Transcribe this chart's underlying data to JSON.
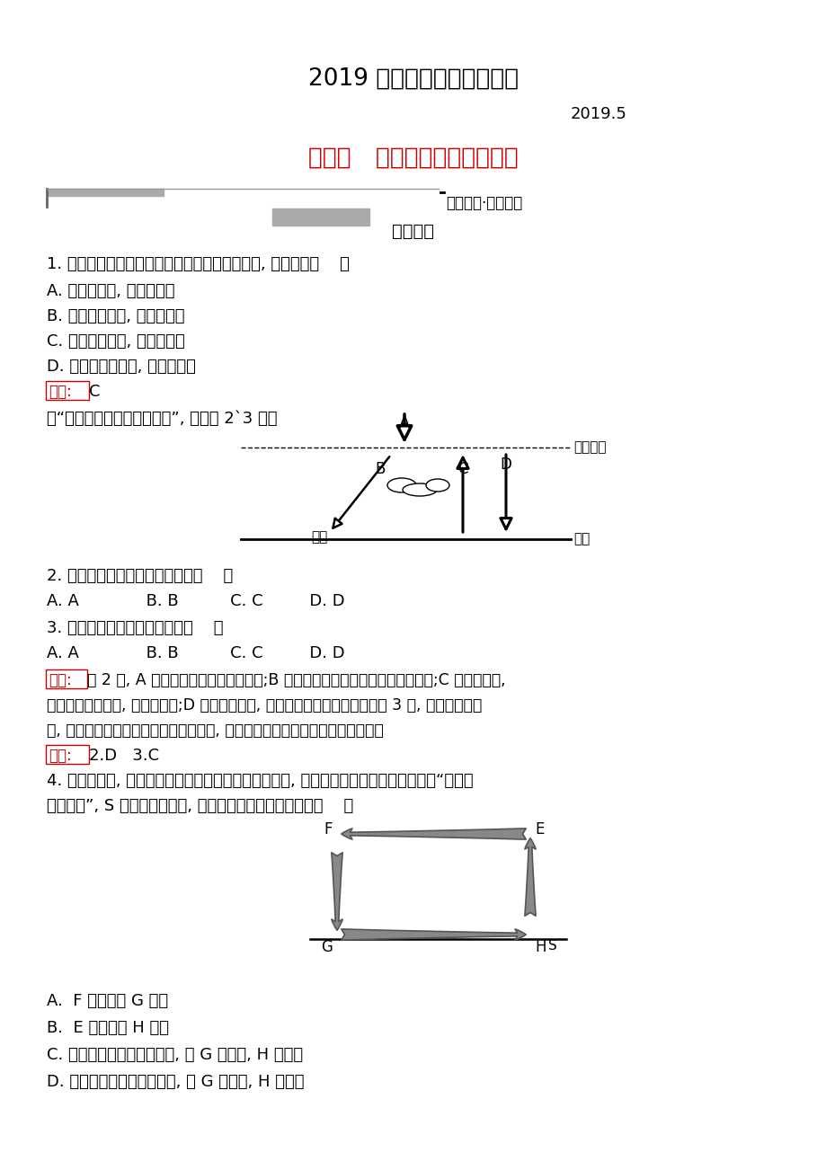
{
  "title": "2019 学年地理教学精品资料",
  "subtitle": "2019.5",
  "section_title": "第一节   冷热不均引起大气运动",
  "section_bar_label": "课时过关·能力提升",
  "section_sub_label": "基础巩固",
  "q1": "1. 霜冻往往出现于深秋至第二年早春晴朗的夜晚, 因为此时（    ）",
  "q1a": "A. 地面辐射强, 地表降温慢",
  "q1b": "B. 空气中水汽多, 地表降温快",
  "q1c": "C. 大气逆辐射弱, 地表降温快",
  "q1d": "D. 大气保温作用强, 地表降温慢",
  "q1_ans": "答案:",
  "q1_ans_val": "C",
  "q2_intro": "读“地球表面受热过程示意图”, 完成第 2`3 题。",
  "q2": "2. 图中字母表示大气逆辐射的是（    ）",
  "q2_opts": "A. A             B. B          C. C         D. D",
  "q3": "3. 近地面大气的热量主要来自（    ）",
  "q3_opts": "A. A             B. B          C. C         D. D",
  "analysis_label": "解析:",
  "analysis_text": "第 2 题, A 是到达大气上界的太阳辐射;B 是被大气削弱后到达地面的太阳辐射;C 是地面辐射,",
  "analysis_text2": "大部分被大气吸收, 使大气增温;D 是大气逆辐射, 补偿地面辐射损失的能量。第 3 题, 结合上题的分",
  "analysis_text3": "析, 近地面大气的热量主要来自地面辐射, 地面是近地面大气的主要、直接热源。",
  "ans23_label": "答案:",
  "ans23_val": "2.D   3.C",
  "q4_line1": "4. 构建模式图, 探究地理基本原理、过程、成因及规律, 是学习地理的方法之一。下图为“大气环",
  "q4_line2": "流模式图”, S 线代表地球表面, 据图判断下列说法正确的是（    ）",
  "q4a": "A.  F 处气压比 G 处高",
  "q4b2": "B.  E 处气压比 H 处低",
  "q4c": "C. 若该环流发生在城市地区, 则 G 是市区, H 是郊区",
  "q4d": "D. 若该环流发生在沿海地区, 则 G 是陆地, H 是海洋",
  "bg_color": "#ffffff",
  "text_color": "#000000",
  "red_color": "#cc0000",
  "gray_color": "#888888"
}
